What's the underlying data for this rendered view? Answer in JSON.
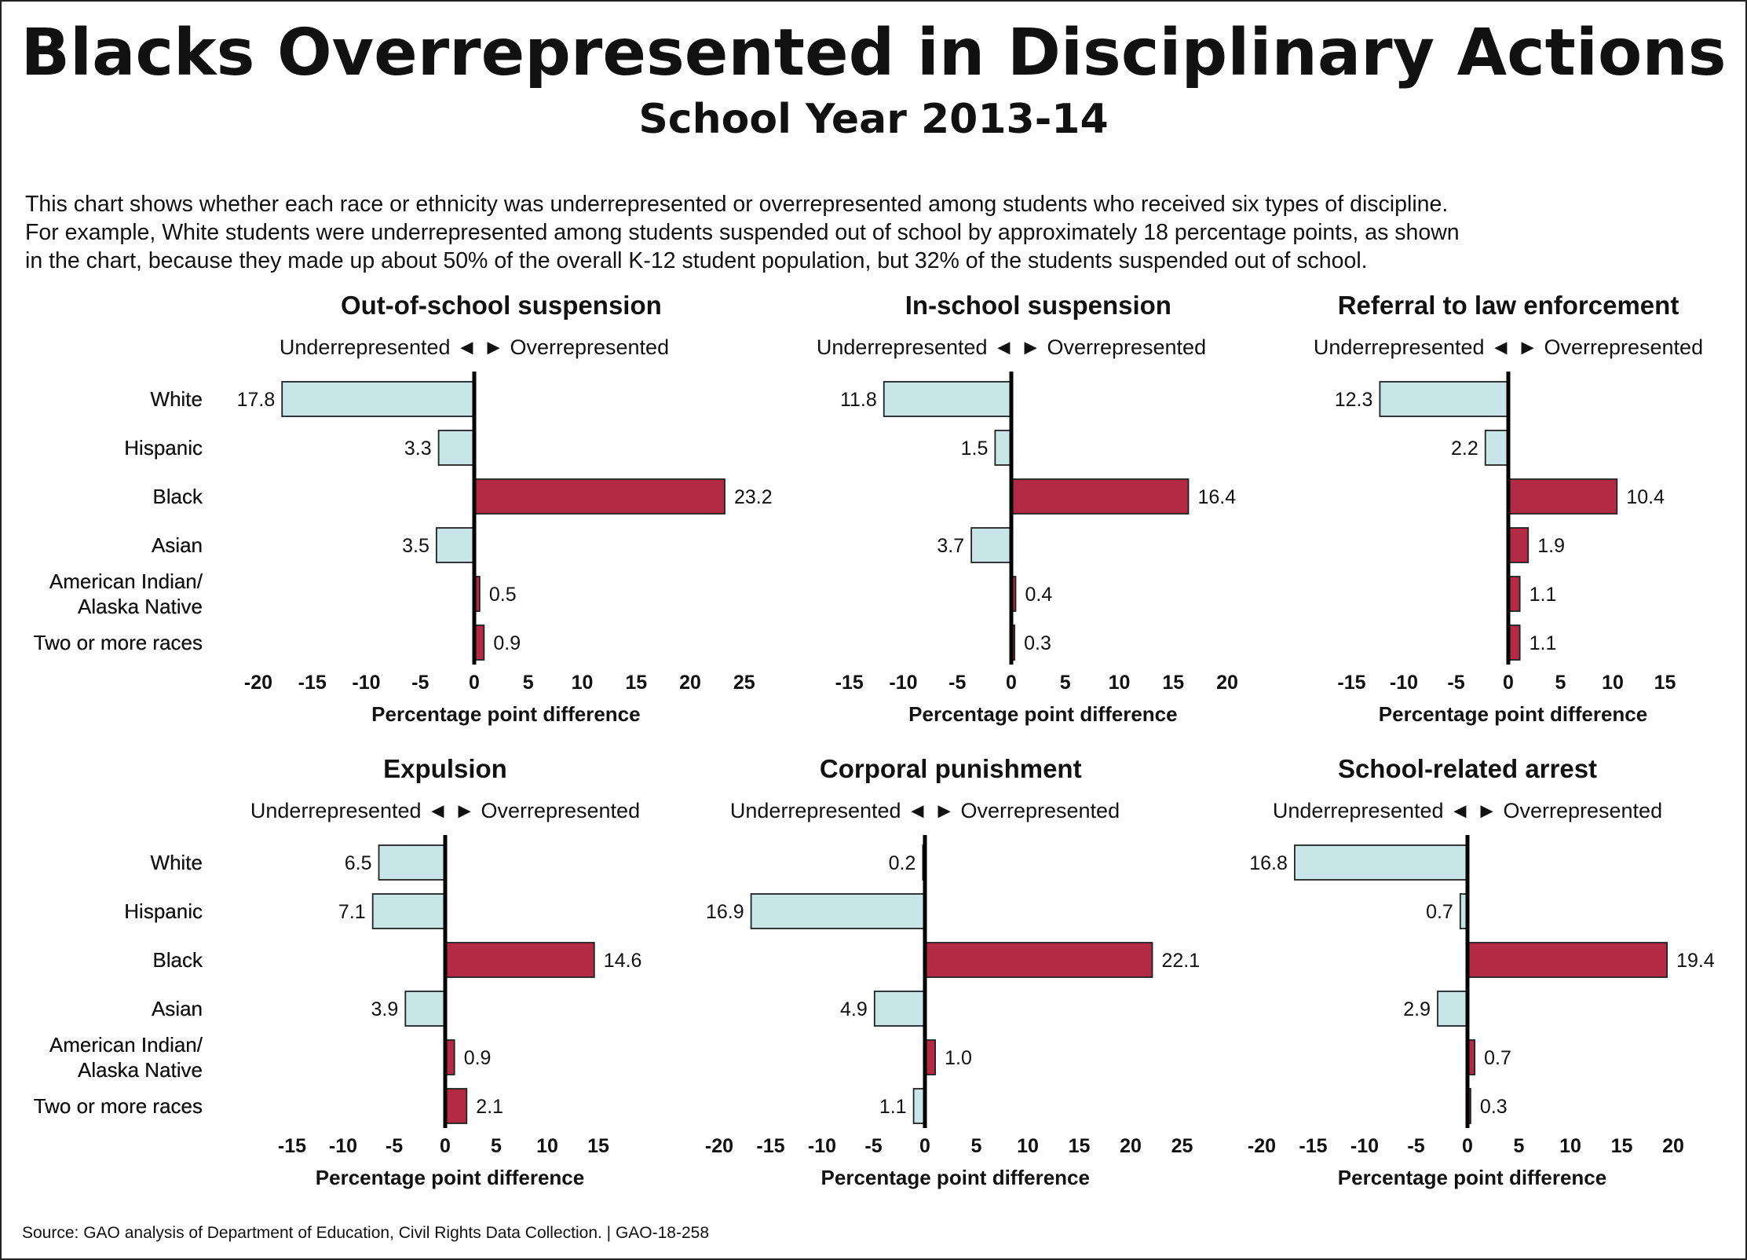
{
  "title": "Blacks Overrepresented in Disciplinary Actions",
  "subtitle": "School Year 2013-14",
  "description": [
    "This chart shows whether each race or ethnicity was underrepresented or overrepresented among students who received six types of discipline.",
    "For example, White students were underrepresented among students suspended out of school by approximately 18 percentage points, as shown",
    "in the chart, because they made up about 50% of the overall K-12 student population, but 32% of the students suspended out of school."
  ],
  "direction_label": "Underrepresented ◄ ► Overrepresented",
  "source": "Source: GAO analysis of Department of Education, Civil Rights Data Collection.  |  GAO-18-258",
  "colors": {
    "negative_fill": "#c8e6e8",
    "positive_fill": "#b22a44",
    "bar_stroke": "#222222",
    "axis": "#000000"
  },
  "chart_data": [
    {
      "type": "bar",
      "orientation": "horizontal",
      "title": "Out-of-school suspension",
      "xlabel": "Percentage point difference",
      "categories": [
        "White",
        "Hispanic",
        "Black",
        "Asian",
        "American Indian/\nAlaska Native",
        "Two or more races"
      ],
      "values": [
        -17.8,
        -3.3,
        23.2,
        -3.5,
        0.5,
        0.9
      ],
      "value_labels": [
        "17.8",
        "3.3",
        "23.2",
        "3.5",
        "0.5",
        "0.9"
      ],
      "xticks": [
        -20,
        -15,
        -10,
        -5,
        0,
        5,
        10,
        15,
        20,
        25
      ],
      "xlim": [
        -20,
        25
      ]
    },
    {
      "type": "bar",
      "orientation": "horizontal",
      "title": "In-school suspension",
      "xlabel": "Percentage point difference",
      "categories": [
        "White",
        "Hispanic",
        "Black",
        "Asian",
        "American Indian/\nAlaska Native",
        "Two or more races"
      ],
      "values": [
        -11.8,
        -1.5,
        16.4,
        -3.7,
        0.4,
        0.3
      ],
      "value_labels": [
        "11.8",
        "1.5",
        "16.4",
        "3.7",
        "0.4",
        "0.3"
      ],
      "xticks": [
        -15,
        -10,
        -5,
        0,
        5,
        10,
        15,
        20
      ],
      "xlim": [
        -15,
        20
      ]
    },
    {
      "type": "bar",
      "orientation": "horizontal",
      "title": "Referral to law enforcement",
      "xlabel": "Percentage point difference",
      "categories": [
        "White",
        "Hispanic",
        "Black",
        "Asian",
        "American Indian/\nAlaska Native",
        "Two or more races"
      ],
      "values": [
        -12.3,
        -2.2,
        10.4,
        1.9,
        1.1,
        1.1
      ],
      "value_labels": [
        "12.3",
        "2.2",
        "10.4",
        "1.9",
        "1.1",
        "1.1"
      ],
      "xticks": [
        -15,
        -10,
        -5,
        0,
        5,
        10,
        15
      ],
      "xlim": [
        -15,
        15
      ]
    },
    {
      "type": "bar",
      "orientation": "horizontal",
      "title": "Expulsion",
      "xlabel": "Percentage point difference",
      "categories": [
        "White",
        "Hispanic",
        "Black",
        "Asian",
        "American Indian/\nAlaska Native",
        "Two or more races"
      ],
      "values": [
        -6.5,
        -7.1,
        14.6,
        -3.9,
        0.9,
        2.1
      ],
      "value_labels": [
        "6.5",
        "7.1",
        "14.6",
        "3.9",
        "0.9",
        "2.1"
      ],
      "xticks": [
        -15,
        -10,
        -5,
        0,
        5,
        10,
        15
      ],
      "xlim": [
        -15,
        15
      ]
    },
    {
      "type": "bar",
      "orientation": "horizontal",
      "title": "Corporal punishment",
      "xlabel": "Percentage point difference",
      "categories": [
        "White",
        "Hispanic",
        "Black",
        "Asian",
        "American Indian/\nAlaska Native",
        "Two or more races"
      ],
      "values": [
        -0.2,
        -16.9,
        22.1,
        -4.9,
        1.0,
        -1.1
      ],
      "value_labels": [
        "0.2",
        "16.9",
        "22.1",
        "4.9",
        "1.0",
        "1.1"
      ],
      "xticks": [
        -20,
        -15,
        -10,
        -5,
        0,
        5,
        10,
        15,
        20,
        25
      ],
      "xlim": [
        -20,
        25
      ]
    },
    {
      "type": "bar",
      "orientation": "horizontal",
      "title": "School-related arrest",
      "xlabel": "Percentage point difference",
      "categories": [
        "White",
        "Hispanic",
        "Black",
        "Asian",
        "American Indian/\nAlaska Native",
        "Two or more races"
      ],
      "values": [
        -16.8,
        -0.7,
        19.4,
        -2.9,
        0.7,
        0.3
      ],
      "value_labels": [
        "16.8",
        "0.7",
        "19.4",
        "2.9",
        "0.7",
        "0.3"
      ],
      "xticks": [
        -20,
        -15,
        -10,
        -5,
        0,
        5,
        10,
        15,
        20
      ],
      "xlim": [
        -20,
        20
      ]
    }
  ]
}
